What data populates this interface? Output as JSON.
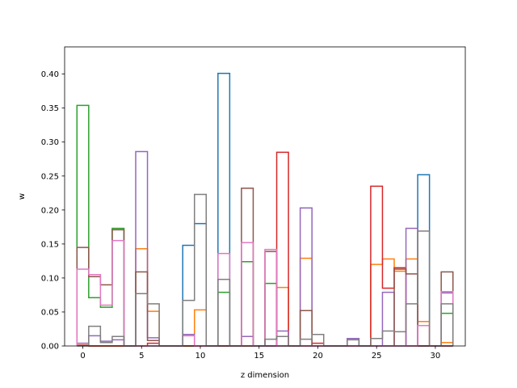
{
  "chart_data": {
    "type": "step",
    "xlabel": "z dimension",
    "ylabel": "w",
    "xlim": [
      -1.55,
      32.55
    ],
    "ylim": [
      0,
      0.44
    ],
    "xticks": [
      0,
      5,
      10,
      15,
      20,
      25,
      30
    ],
    "xtick_labels": [
      "0",
      "5",
      "10",
      "15",
      "20",
      "25",
      "30"
    ],
    "yticks": [
      0.0,
      0.05,
      0.1,
      0.15,
      0.2,
      0.25,
      0.3,
      0.35,
      0.4
    ],
    "ytick_labels": [
      "0.00",
      "0.05",
      "0.10",
      "0.15",
      "0.20",
      "0.25",
      "0.30",
      "0.35",
      "0.40"
    ],
    "grid": false,
    "series": [
      {
        "color": "#1f77b4",
        "values": [
          0.001,
          0.0,
          0.0,
          0.0,
          0.0,
          0.0,
          0.0,
          0.0,
          0.0,
          0.148,
          0.18,
          0.0,
          0.401,
          0.0,
          0.0,
          0.0,
          0.0,
          0.0,
          0.0,
          0.0,
          0.0,
          0.0,
          0.0,
          0.0,
          0.0,
          0.0,
          0.0,
          0.0,
          0.0,
          0.252,
          0.0,
          0.0
        ]
      },
      {
        "color": "#ff7f0e",
        "values": [
          0.001,
          0.0,
          0.0,
          0.0,
          0.0,
          0.143,
          0.051,
          0.0,
          0.0,
          0.0,
          0.053,
          0.0,
          0.0,
          0.0,
          0.0,
          0.0,
          0.0,
          0.086,
          0.0,
          0.129,
          0.0,
          0.0,
          0.0,
          0.0,
          0.0,
          0.12,
          0.128,
          0.11,
          0.128,
          0.036,
          0.0,
          0.005
        ]
      },
      {
        "color": "#2ca02c",
        "values": [
          0.354,
          0.071,
          0.057,
          0.173,
          0.0,
          0.0,
          0.0,
          0.0,
          0.0,
          0.0,
          0.0,
          0.0,
          0.079,
          0.0,
          0.124,
          0.0,
          0.092,
          0.0,
          0.0,
          0.0,
          0.0,
          0.0,
          0.0,
          0.0,
          0.0,
          0.0,
          0.0,
          0.0,
          0.0,
          0.0,
          0.0,
          0.048
        ]
      },
      {
        "color": "#d62728",
        "values": [
          0.001,
          0.0,
          0.0,
          0.0,
          0.0,
          0.0,
          0.004,
          0.0,
          0.0,
          0.0,
          0.0,
          0.0,
          0.0,
          0.0,
          0.0,
          0.0,
          0.0,
          0.285,
          0.0,
          0.0,
          0.004,
          0.0,
          0.0,
          0.0,
          0.0,
          0.235,
          0.085,
          0.115,
          0.0,
          0.0,
          0.0,
          0.0
        ]
      },
      {
        "color": "#9467bd",
        "values": [
          0.004,
          0.015,
          0.007,
          0.009,
          0.0,
          0.286,
          0.012,
          0.0,
          0.0,
          0.017,
          0.0,
          0.0,
          0.0,
          0.0,
          0.014,
          0.0,
          0.0,
          0.022,
          0.0,
          0.203,
          0.0,
          0.0,
          0.0,
          0.011,
          0.0,
          0.0,
          0.079,
          0.0,
          0.173,
          0.0,
          0.0,
          0.078
        ]
      },
      {
        "color": "#8c564b",
        "values": [
          0.145,
          0.102,
          0.09,
          0.171,
          0.0,
          0.109,
          0.008,
          0.0,
          0.0,
          0.0,
          0.0,
          0.0,
          0.0,
          0.0,
          0.232,
          0.0,
          0.139,
          0.0,
          0.0,
          0.052,
          0.0,
          0.0,
          0.0,
          0.0,
          0.0,
          0.0,
          0.0,
          0.113,
          0.106,
          0.0,
          0.0,
          0.109
        ]
      },
      {
        "color": "#e377c2",
        "values": [
          0.113,
          0.105,
          0.06,
          0.155,
          0.0,
          0.0,
          0.0,
          0.0,
          0.0,
          0.015,
          0.0,
          0.0,
          0.136,
          0.0,
          0.152,
          0.0,
          0.142,
          0.0,
          0.0,
          0.0,
          0.0,
          0.0,
          0.0,
          0.0,
          0.0,
          0.0,
          0.0,
          0.0,
          0.0,
          0.03,
          0.0,
          0.08
        ]
      },
      {
        "color": "#7f7f7f",
        "values": [
          0.0,
          0.029,
          0.005,
          0.014,
          0.0,
          0.077,
          0.062,
          0.0,
          0.0,
          0.067,
          0.223,
          0.0,
          0.098,
          0.0,
          0.0,
          0.0,
          0.01,
          0.014,
          0.0,
          0.01,
          0.017,
          0.0,
          0.0,
          0.009,
          0.0,
          0.011,
          0.022,
          0.021,
          0.062,
          0.169,
          0.0,
          0.062
        ]
      }
    ]
  }
}
